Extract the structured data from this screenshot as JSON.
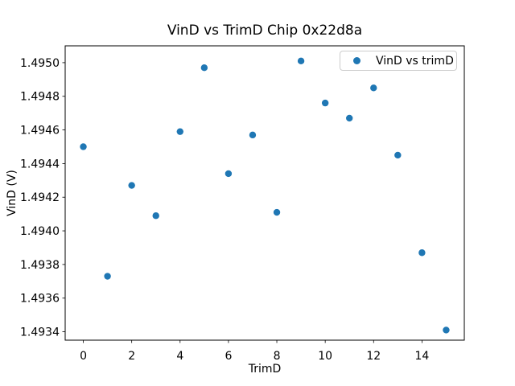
{
  "chart_data": {
    "type": "scatter",
    "title": "VinD vs TrimD Chip 0x22d8a",
    "xlabel": "TrimD",
    "ylabel": "VinD (V)",
    "legend": {
      "label": "VinD vs trimD",
      "position": "upper right"
    },
    "marker_color": "#1f77b4",
    "grid": false,
    "x": [
      0,
      1,
      2,
      3,
      4,
      5,
      6,
      7,
      8,
      9,
      10,
      11,
      12,
      13,
      14,
      15
    ],
    "y": [
      1.4945,
      1.49373,
      1.49427,
      1.49409,
      1.49459,
      1.49497,
      1.49434,
      1.49457,
      1.49411,
      1.49501,
      1.49476,
      1.49467,
      1.49485,
      1.49445,
      1.49387,
      1.49341
    ],
    "xlim": [
      -0.75,
      15.75
    ],
    "ylim": [
      1.49335,
      1.4951
    ],
    "xticks": [
      0,
      2,
      4,
      6,
      8,
      10,
      12,
      14
    ],
    "yticks": [
      1.4934,
      1.4936,
      1.4938,
      1.494,
      1.4942,
      1.4944,
      1.4946,
      1.4948,
      1.495
    ]
  }
}
